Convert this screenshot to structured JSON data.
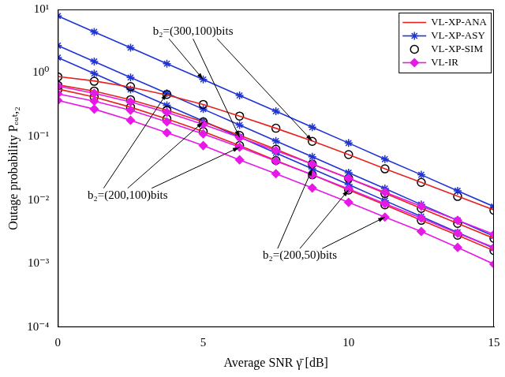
{
  "chart_data": {
    "type": "line",
    "xlabel": "Average SNR γ̄ [dB]",
    "ylabel": "Outage probability Pₒᵤₜ,₂",
    "log": "y",
    "grid": false,
    "legend": "upper right",
    "xlim": [
      0,
      15
    ],
    "xticks": [
      0,
      5,
      10,
      15
    ],
    "ylim": [
      0.0001,
      10
    ],
    "yticks": [
      {
        "value": 0.0001,
        "label": "10⁻⁴"
      },
      {
        "value": 0.001,
        "label": "10⁻³"
      },
      {
        "value": 0.01,
        "label": "10⁻²"
      },
      {
        "value": 0.1,
        "label": "10⁻¹"
      },
      {
        "value": 1,
        "label": "10⁰"
      },
      {
        "value": 10,
        "label": "10¹"
      }
    ],
    "x": [
      0,
      1.25,
      2.5,
      3.75,
      5,
      6.25,
      7.5,
      8.75,
      10,
      11.25,
      12.5,
      13.75,
      15
    ],
    "annotations": [
      "b₂=(300,100)bits",
      "b₂=(200,100)bits",
      "b₂=(200,50)bits"
    ],
    "series": [
      {
        "name": "VL-XP-ANA",
        "color": "#e8231f",
        "marker": "none",
        "line_style": "solid",
        "values": [
          0.88,
          0.75,
          0.6,
          0.45,
          0.32,
          0.21,
          0.135,
          0.085,
          0.052,
          0.031,
          0.019,
          0.0115,
          0.007
        ]
      },
      {
        "name": "VL-XP-ASY",
        "color": "#1f33d6",
        "marker": "asterisk",
        "line_style": "solid",
        "values": [
          7.9,
          4.44,
          2.5,
          1.4,
          0.79,
          0.444,
          0.25,
          0.14,
          0.079,
          0.044,
          0.025,
          0.014,
          0.0079
        ]
      },
      {
        "name": "VL-XP-SIM",
        "color": "#000000",
        "marker": "circle",
        "line_style": "none",
        "values": [
          0.87,
          0.74,
          0.61,
          0.46,
          0.32,
          0.21,
          0.135,
          0.084,
          0.052,
          0.031,
          0.019,
          0.0114,
          0.0069
        ]
      },
      {
        "name": "VL-IR",
        "color": "#e619e6",
        "marker": "diamond",
        "line_style": "solid",
        "values": [
          0.62,
          0.48,
          0.35,
          0.24,
          0.155,
          0.097,
          0.06,
          0.037,
          0.022,
          0.0133,
          0.008,
          0.0048,
          0.0029
        ]
      },
      {
        "name": "VL-XP-ANA",
        "color": "#e8231f",
        "marker": "none",
        "line_style": "solid",
        "values": [
          0.65,
          0.52,
          0.38,
          0.26,
          0.17,
          0.105,
          0.063,
          0.037,
          0.022,
          0.0128,
          0.0074,
          0.0043,
          0.0025
        ]
      },
      {
        "name": "VL-XP-ASY",
        "color": "#1f33d6",
        "marker": "asterisk",
        "line_style": "solid",
        "values": [
          2.7,
          1.52,
          0.85,
          0.48,
          0.27,
          0.152,
          0.085,
          0.048,
          0.027,
          0.0152,
          0.0085,
          0.0048,
          0.0027
        ]
      },
      {
        "name": "VL-XP-SIM",
        "color": "#000000",
        "marker": "circle",
        "line_style": "none",
        "values": [
          0.64,
          0.52,
          0.38,
          0.26,
          0.17,
          0.104,
          0.063,
          0.037,
          0.022,
          0.0127,
          0.0074,
          0.0043,
          0.0025
        ]
      },
      {
        "name": "VL-IR",
        "color": "#e619e6",
        "marker": "diamond",
        "line_style": "solid",
        "values": [
          0.47,
          0.36,
          0.26,
          0.17,
          0.11,
          0.068,
          0.041,
          0.025,
          0.015,
          0.0088,
          0.0052,
          0.003,
          0.0018
        ]
      },
      {
        "name": "VL-XP-ANA",
        "color": "#e8231f",
        "marker": "none",
        "line_style": "solid",
        "values": [
          0.56,
          0.42,
          0.29,
          0.19,
          0.12,
          0.072,
          0.042,
          0.025,
          0.0145,
          0.0084,
          0.0048,
          0.0028,
          0.0016
        ]
      },
      {
        "name": "VL-XP-ASY",
        "color": "#1f33d6",
        "marker": "asterisk",
        "line_style": "solid",
        "values": [
          1.75,
          0.98,
          0.55,
          0.31,
          0.175,
          0.098,
          0.055,
          0.031,
          0.0175,
          0.0098,
          0.0055,
          0.0031,
          0.00175
        ]
      },
      {
        "name": "VL-XP-SIM",
        "color": "#000000",
        "marker": "circle",
        "line_style": "none",
        "values": [
          0.55,
          0.42,
          0.29,
          0.19,
          0.12,
          0.072,
          0.042,
          0.025,
          0.0144,
          0.0084,
          0.0048,
          0.0028,
          0.0016
        ]
      },
      {
        "name": "VL-IR",
        "color": "#e619e6",
        "marker": "diamond",
        "line_style": "solid",
        "values": [
          0.37,
          0.27,
          0.18,
          0.115,
          0.072,
          0.043,
          0.026,
          0.0155,
          0.0092,
          0.0054,
          0.0032,
          0.0018,
          0.00098
        ]
      }
    ]
  }
}
